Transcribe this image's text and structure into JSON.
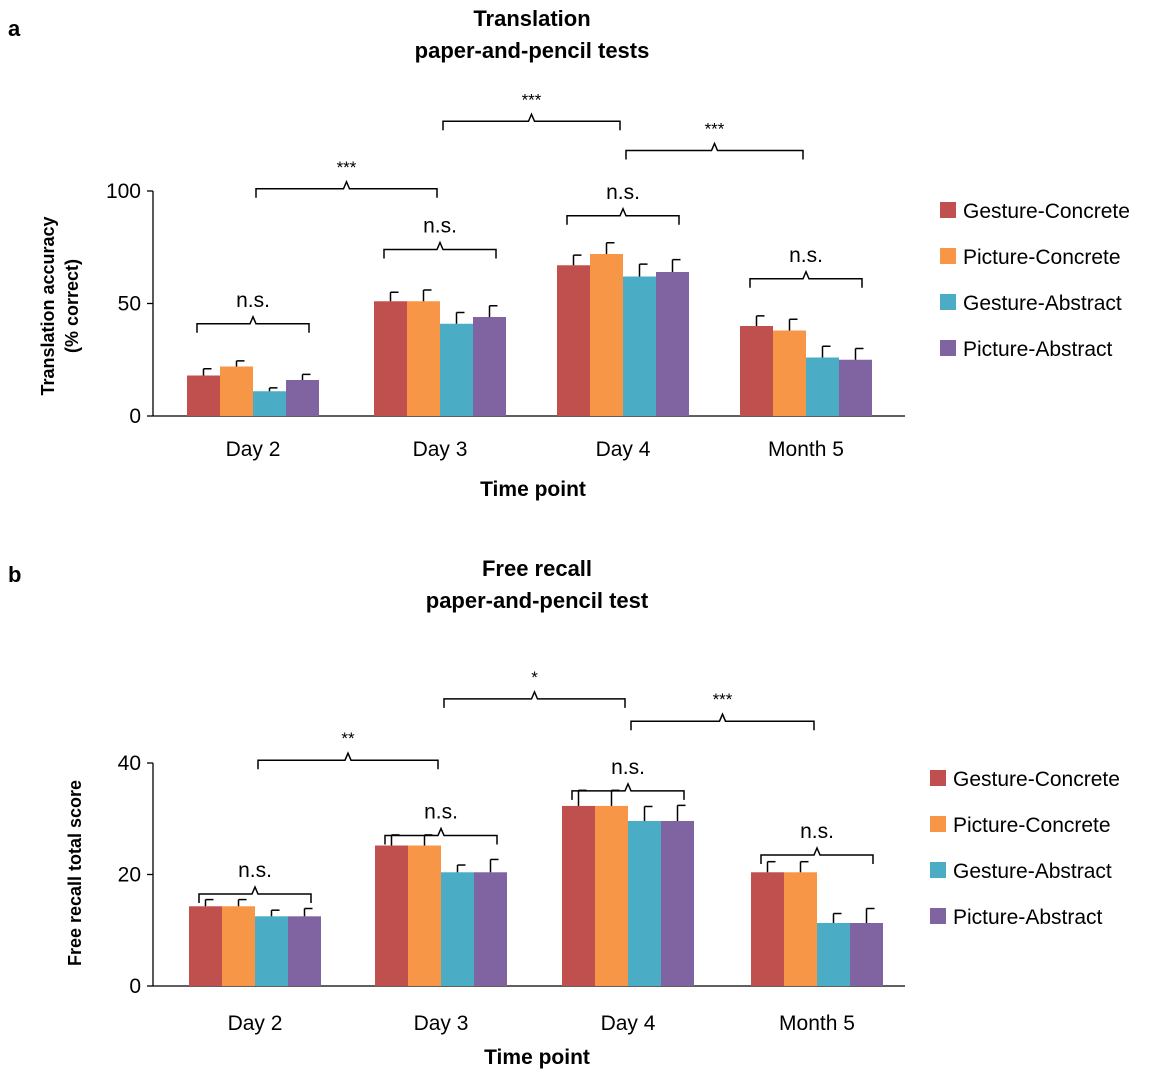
{
  "panels": [
    {
      "letter": "a",
      "chart_data": {
        "type": "bar",
        "title": [
          "Translation",
          "paper-and-pencil tests"
        ],
        "ylabel": [
          "Translation accuracy",
          "(% correct)"
        ],
        "xlabel": "Time point",
        "categories": [
          "Day 2",
          "Day 3",
          "Day 4",
          "Month 5"
        ],
        "ylim": [
          0,
          100
        ],
        "yticks": [
          0,
          50,
          100
        ],
        "legend_position": "right",
        "series": [
          {
            "name": "Gesture-Concrete",
            "color": "#c0504d",
            "values": [
              18,
              51,
              67,
              40
            ],
            "errors": [
              3,
              4,
              4.5,
              4.5
            ]
          },
          {
            "name": "Picture-Concrete",
            "color": "#f79646",
            "values": [
              22,
              51,
              72,
              38
            ],
            "errors": [
              2.5,
              5,
              5,
              5
            ]
          },
          {
            "name": "Gesture-Abstract",
            "color": "#4bacc6",
            "values": [
              11,
              41,
              62,
              26
            ],
            "errors": [
              1.5,
              5,
              5.5,
              5
            ]
          },
          {
            "name": "Picture-Abstract",
            "color": "#8064a2",
            "values": [
              16,
              44,
              64,
              25
            ],
            "errors": [
              2.5,
              5,
              5.5,
              5
            ]
          }
        ],
        "annotations": [
          {
            "label": "n.s.",
            "kind": "within",
            "category": 0,
            "level": 41
          },
          {
            "label": "n.s.",
            "kind": "within",
            "category": 1,
            "level": 74
          },
          {
            "label": "n.s.",
            "kind": "within",
            "category": 2,
            "level": 89
          },
          {
            "label": "n.s.",
            "kind": "within",
            "category": 3,
            "level": 61
          },
          {
            "label": "***",
            "kind": "between",
            "from": 0,
            "to": 1,
            "level": 101
          },
          {
            "label": "***",
            "kind": "between",
            "from": 1,
            "to": 2,
            "level": 131
          },
          {
            "label": "***",
            "kind": "between",
            "from": 2,
            "to": 3,
            "level": 118
          }
        ]
      }
    },
    {
      "letter": "b",
      "chart_data": {
        "type": "bar",
        "title": [
          "Free recall",
          "paper-and-pencil test"
        ],
        "ylabel": [
          "Free recall total score"
        ],
        "xlabel": "Time point",
        "categories": [
          "Day 2",
          "Day 3",
          "Day 4",
          "Month 5"
        ],
        "ylim": [
          0,
          40
        ],
        "yticks": [
          0,
          20,
          40
        ],
        "legend_position": "right",
        "series": [
          {
            "name": "Gesture-Concrete",
            "color": "#c0504d",
            "values": [
              14.3,
              25.2,
              32.3,
              20.4
            ],
            "errors": [
              1.2,
              1.9,
              2.8,
              1.9
            ]
          },
          {
            "name": "Picture-Concrete",
            "color": "#f79646",
            "values": [
              14.3,
              25.2,
              32.3,
              20.4
            ],
            "errors": [
              1.2,
              1.9,
              2.8,
              1.9
            ]
          },
          {
            "name": "Gesture-Abstract",
            "color": "#4bacc6",
            "values": [
              12.5,
              20.4,
              29.6,
              11.3
            ],
            "errors": [
              1.1,
              1.3,
              2.6,
              1.7
            ]
          },
          {
            "name": "Picture-Abstract",
            "color": "#8064a2",
            "values": [
              12.5,
              20.4,
              29.6,
              11.3
            ],
            "errors": [
              1.4,
              2.3,
              2.8,
              2.6
            ]
          }
        ],
        "annotations": [
          {
            "label": "n.s.",
            "kind": "within",
            "category": 0,
            "level": 16.5
          },
          {
            "label": "n.s.",
            "kind": "within",
            "category": 1,
            "level": 27
          },
          {
            "label": "n.s.",
            "kind": "within",
            "category": 2,
            "level": 35
          },
          {
            "label": "n.s.",
            "kind": "within",
            "category": 3,
            "level": 23.5
          },
          {
            "label": "**",
            "kind": "between",
            "from": 0,
            "to": 1,
            "level": 40.5
          },
          {
            "label": "*",
            "kind": "between",
            "from": 1,
            "to": 2,
            "level": 51.5
          },
          {
            "label": "***",
            "kind": "between",
            "from": 2,
            "to": 3,
            "level": 47.5
          }
        ]
      }
    }
  ]
}
